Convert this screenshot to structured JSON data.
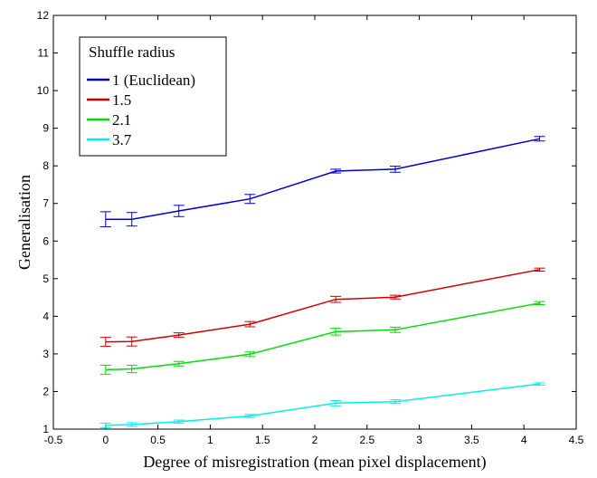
{
  "chart_data": {
    "type": "line",
    "title": "",
    "xlabel": "Degree of misregistration (mean pixel displacement)",
    "ylabel": "Generalisation",
    "xlim": [
      -0.5,
      4.5
    ],
    "ylim": [
      1,
      12
    ],
    "xticks": [
      "-0.5",
      "0",
      "0.5",
      "1",
      "1.5",
      "2",
      "2.5",
      "3",
      "3.5",
      "4",
      "4.5"
    ],
    "yticks": [
      "1",
      "2",
      "3",
      "4",
      "5",
      "6",
      "7",
      "8",
      "9",
      "10",
      "11",
      "12"
    ],
    "grid": false,
    "legend": {
      "title": "Shuffle radius",
      "position": "top-left"
    },
    "x": [
      0,
      0.25,
      0.7,
      1.38,
      2.2,
      2.77,
      4.15
    ],
    "series": [
      {
        "name": "1 (Euclidean)",
        "color": "#0000cc",
        "values": [
          6.58,
          6.58,
          6.8,
          7.12,
          7.86,
          7.91,
          8.72
        ],
        "errors": [
          0.2,
          0.18,
          0.15,
          0.12,
          0.05,
          0.08,
          0.06
        ]
      },
      {
        "name": "1.5",
        "color": "#cc0000",
        "values": [
          3.32,
          3.33,
          3.5,
          3.79,
          4.45,
          4.51,
          5.24
        ],
        "errors": [
          0.12,
          0.12,
          0.06,
          0.07,
          0.08,
          0.05,
          0.04
        ]
      },
      {
        "name": "2.1",
        "color": "#00dd00",
        "values": [
          2.58,
          2.6,
          2.74,
          2.99,
          3.59,
          3.64,
          4.35
        ],
        "errors": [
          0.12,
          0.1,
          0.06,
          0.06,
          0.09,
          0.07,
          0.04
        ]
      },
      {
        "name": "3.7",
        "color": "#00eeee",
        "values": [
          1.1,
          1.12,
          1.2,
          1.35,
          1.69,
          1.73,
          2.2
        ],
        "errors": [
          0.06,
          0.05,
          0.04,
          0.04,
          0.07,
          0.05,
          0.03
        ]
      }
    ]
  }
}
